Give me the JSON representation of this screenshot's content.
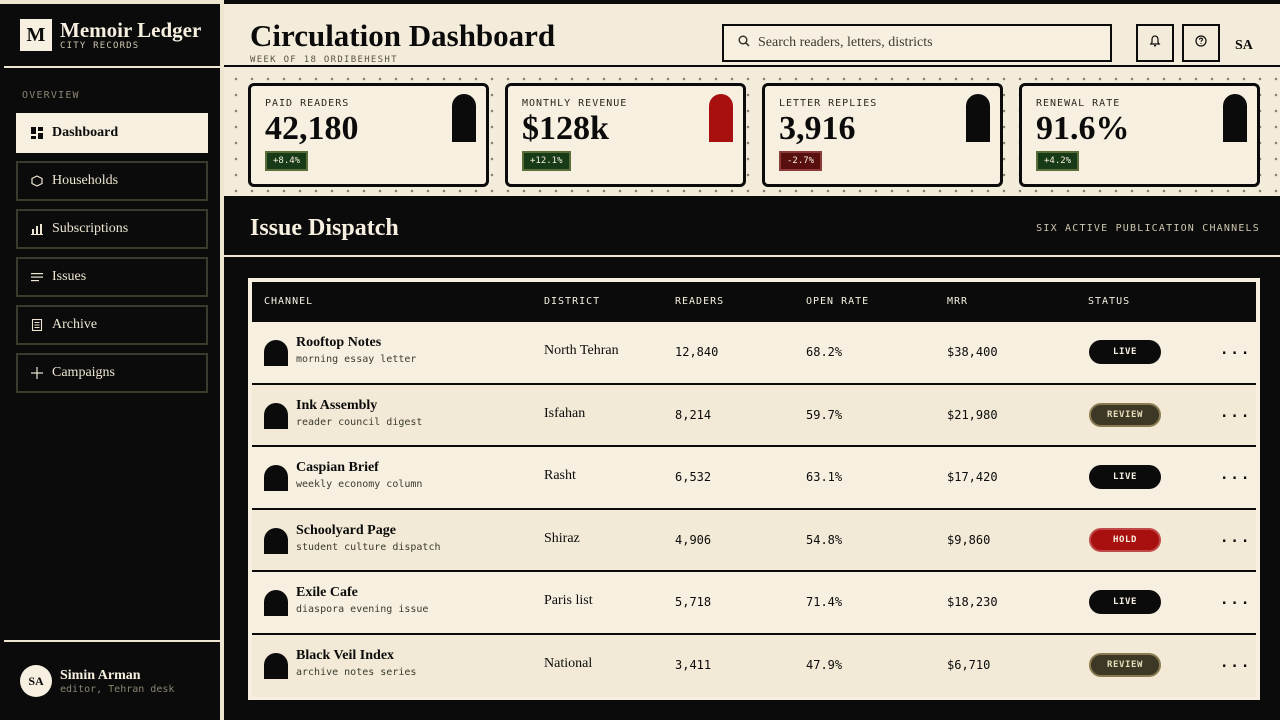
{
  "brand": {
    "logo_letter": "M",
    "title": "Memoir Ledger",
    "subtitle": "CITY RECORDS"
  },
  "sidebar": {
    "section_label": "OVERVIEW",
    "items": [
      {
        "label": "Dashboard",
        "icon": "dashboard-icon",
        "active": true
      },
      {
        "label": "Households",
        "icon": "hexagon-icon",
        "active": false
      },
      {
        "label": "Subscriptions",
        "icon": "bar-chart-icon",
        "active": false
      },
      {
        "label": "Issues",
        "icon": "lines-icon",
        "active": false
      },
      {
        "label": "Archive",
        "icon": "document-icon",
        "active": false
      },
      {
        "label": "Campaigns",
        "icon": "plus-icon",
        "active": false
      }
    ],
    "user": {
      "initials": "SA",
      "name": "Simin Arman",
      "role": "editor, Tehran desk"
    }
  },
  "header": {
    "title": "Circulation Dashboard",
    "subtitle": "WEEK OF 18 ORDIBEHESHT",
    "search_placeholder": "Search readers, letters, districts",
    "user_initials": "SA"
  },
  "kpis": [
    {
      "label": "PAID READERS",
      "value": "42,180",
      "delta": "+8.4%",
      "trend": "up",
      "accent": "#0b0b0b"
    },
    {
      "label": "MONTHLY REVENUE",
      "value": "$128k",
      "delta": "+12.1%",
      "trend": "up",
      "accent": "#a80f0f"
    },
    {
      "label": "LETTER REPLIES",
      "value": "3,916",
      "delta": "-2.7%",
      "trend": "down",
      "accent": "#0b0b0b"
    },
    {
      "label": "RENEWAL RATE",
      "value": "91.6%",
      "delta": "+4.2%",
      "trend": "up",
      "accent": "#0b0b0b"
    }
  ],
  "dispatch": {
    "title": "Issue Dispatch",
    "meta": "SIX ACTIVE PUBLICATION CHANNELS",
    "columns": [
      "CHANNEL",
      "DISTRICT",
      "READERS",
      "OPEN RATE",
      "MRR",
      "STATUS"
    ],
    "rows": [
      {
        "name": "Rooftop Notes",
        "desc": "morning essay letter",
        "district": "North Tehran",
        "readers": "12,840",
        "open_rate": "68.2%",
        "mrr": "$38,400",
        "status": "LIVE"
      },
      {
        "name": "Ink Assembly",
        "desc": "reader council digest",
        "district": "Isfahan",
        "readers": "8,214",
        "open_rate": "59.7%",
        "mrr": "$21,980",
        "status": "REVIEW"
      },
      {
        "name": "Caspian Brief",
        "desc": "weekly economy column",
        "district": "Rasht",
        "readers": "6,532",
        "open_rate": "63.1%",
        "mrr": "$17,420",
        "status": "LIVE"
      },
      {
        "name": "Schoolyard Page",
        "desc": "student culture dispatch",
        "district": "Shiraz",
        "readers": "4,906",
        "open_rate": "54.8%",
        "mrr": "$9,860",
        "status": "HOLD"
      },
      {
        "name": "Exile Cafe",
        "desc": "diaspora evening issue",
        "district": "Paris list",
        "readers": "5,718",
        "open_rate": "71.4%",
        "mrr": "$18,230",
        "status": "LIVE"
      },
      {
        "name": "Black Veil Index",
        "desc": "archive notes series",
        "district": "National",
        "readers": "3,411",
        "open_rate": "47.9%",
        "mrr": "$6,710",
        "status": "REVIEW"
      }
    ],
    "more_label": "..."
  }
}
